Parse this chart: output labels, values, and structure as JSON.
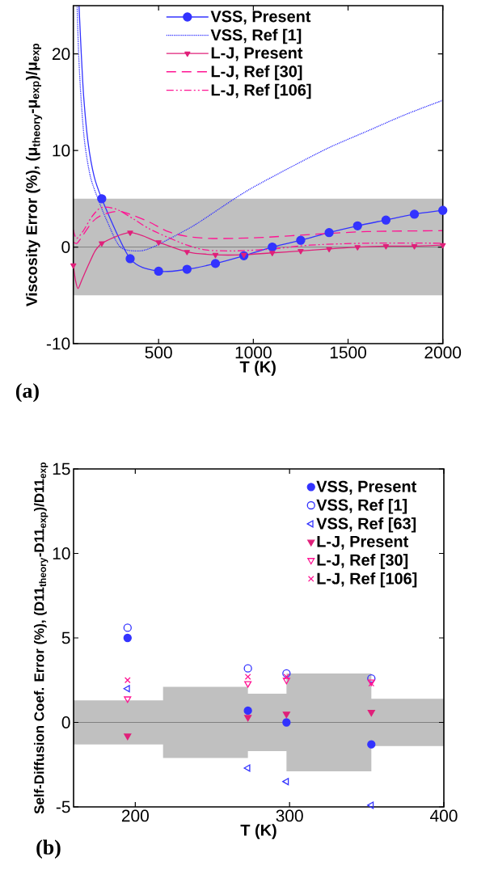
{
  "chart_data": [
    {
      "type": "line",
      "xlabel": "T (K)",
      "ylabel": "Viscosity Error (%), (μ$_{theory}$-μ$_{exp}$)/μ$_{exp}$",
      "annotations": [
        "(a)"
      ],
      "xlim": [
        50,
        2000
      ],
      "ylim": [
        -10,
        25
      ],
      "xticks": [
        500,
        1000,
        1500,
        2000
      ],
      "yticks": [
        -10,
        0,
        10,
        20
      ],
      "legend": "top",
      "bands": [
        {
          "axis": "y",
          "from": -5,
          "to": 5,
          "color": "#c0c0c0"
        }
      ],
      "ref_lines": [
        {
          "axis": "y",
          "value": 0,
          "color": "#808080"
        }
      ],
      "series": [
        {
          "name": "VSS, Present",
          "color": "#3333ff",
          "marker": "circle",
          "line_style": "solid",
          "x": [
            200,
            350,
            500,
            650,
            800,
            950,
            1100,
            1250,
            1400,
            1550,
            1700,
            1850,
            2000
          ],
          "values": [
            5.0,
            -1.2,
            -2.5,
            -2.3,
            -1.7,
            -0.9,
            0.0,
            0.7,
            1.5,
            2.2,
            2.8,
            3.4,
            3.8
          ]
        },
        {
          "name": "VSS, Ref [1]",
          "color": "#3333ff",
          "marker": "none",
          "line_style": "dotted",
          "x": [
            70,
            78,
            92,
            110,
            140,
            180,
            230,
            298,
            395,
            470,
            600,
            700,
            900,
            1000,
            1200,
            1400,
            1600,
            1800,
            2000
          ],
          "values": [
            25,
            20,
            15,
            10.8,
            7.3,
            5.0,
            2.6,
            0,
            -0.4,
            0,
            1.3,
            2.4,
            5.0,
            6.2,
            8.3,
            10.3,
            12.0,
            13.7,
            15.2
          ]
        },
        {
          "name": "L-J, Present",
          "color": "#e0207a",
          "marker": "triangle-down",
          "line_style": "solid",
          "x": [
            50,
            125,
            200,
            350,
            500,
            650,
            800,
            950,
            1100,
            1250,
            1400,
            1550,
            1700,
            1850,
            2000
          ],
          "values": [
            -1.9,
            null,
            0.4,
            1.5,
            0.5,
            -0.5,
            -0.8,
            -0.8,
            -0.6,
            -0.4,
            -0.2,
            0.0,
            0.1,
            0.1,
            0.2
          ]
        },
        {
          "name": "L-J, Ref [30]",
          "color": "#ff1493",
          "marker": "none",
          "line_style": "dashed",
          "x": [
            50,
            70,
            100,
            150,
            200,
            284,
            350,
            450,
            550,
            650,
            766,
            900,
            1055,
            1300,
            1600,
            2000
          ],
          "values": [
            0.5,
            0.4,
            1.2,
            2.6,
            3.3,
            3.7,
            3.4,
            2.6,
            1.6,
            1.1,
            0.9,
            0.9,
            1.0,
            1.3,
            1.6,
            1.7
          ]
        },
        {
          "name": "L-J, Ref [106]",
          "color": "#ff1493",
          "marker": "none",
          "line_style": "dashdotdotted",
          "x": [
            50,
            66,
            100,
            150,
            200,
            280,
            368,
            450,
            550,
            650,
            750,
            900,
            1100,
            1300,
            1600,
            2000
          ],
          "values": [
            1.8,
            0.9,
            1.6,
            3.2,
            4.1,
            3.9,
            2.9,
            1.9,
            1.0,
            0.2,
            -0.3,
            -0.4,
            -0.2,
            0.2,
            0.4,
            0.4
          ]
        },
        {
          "color": "#3333ff",
          "marker": "none",
          "line_style": "solid",
          "x": [
            80,
            92,
            105,
            128,
            160,
            200
          ],
          "values": [
            25,
            20,
            15.5,
            10.8,
            7.3,
            5.0
          ]
        },
        {
          "color": "#e0207a",
          "marker": "none",
          "line_style": "solid",
          "x": [
            50,
            62,
            75,
            95,
            131,
            165,
            200
          ],
          "values": [
            -1.9,
            -3.5,
            -4.3,
            -3.4,
            -1.8,
            -0.4,
            0.4
          ]
        }
      ]
    },
    {
      "type": "scatter",
      "xlabel": "T (K)",
      "ylabel": "Self-Diffusion Coef. Error (%), (D11$_{theory}$-D11$_{exp}$)/D11$_{exp}$",
      "annotations": [
        "(b)"
      ],
      "xlim": [
        160,
        400
      ],
      "ylim": [
        -5,
        15
      ],
      "xticks": [
        200,
        300,
        400
      ],
      "yticks": [
        -5,
        0,
        5,
        10,
        15
      ],
      "legend": "top right",
      "x": [
        195,
        273,
        298,
        353
      ],
      "series": [
        {
          "type": "step",
          "color": "#808080",
          "x": [
            160,
            218,
            273,
            298,
            353,
            400
          ],
          "values": [
            0,
            0,
            0,
            0,
            0,
            0
          ],
          "lower": [
            -1.3,
            -2.1,
            -1.7,
            -2.9,
            -1.4,
            -1.4
          ],
          "upper": [
            1.3,
            2.1,
            1.7,
            2.9,
            1.4,
            1.4
          ]
        },
        {
          "name": "VSS, Present",
          "color": "#3333ff",
          "marker": "circle",
          "values": [
            5.0,
            0.7,
            0.0,
            -1.3
          ]
        },
        {
          "name": "VSS, Ref [1]",
          "color": "#3333ff",
          "marker": "circle-open",
          "values": [
            5.6,
            3.2,
            2.9,
            2.6
          ]
        },
        {
          "name": "VSS, Ref [63]",
          "color": "#3333ff",
          "marker": "triangle-left-open",
          "values": [
            2.0,
            -2.7,
            -3.5,
            -4.9
          ]
        },
        {
          "name": "L-J, Present",
          "color": "#e0207a",
          "marker": "triangle-down",
          "values": [
            -0.8,
            0.3,
            0.5,
            0.6
          ]
        },
        {
          "name": "L-J, Ref [30]",
          "color": "#ff1493",
          "marker": "triangle-down-open",
          "values": [
            1.4,
            2.3,
            2.5,
            2.4
          ]
        },
        {
          "name": "L-J, Ref [106]",
          "color": "#ff1493",
          "marker": "cross",
          "values": [
            2.5,
            2.7,
            2.7,
            2.3
          ]
        }
      ]
    }
  ]
}
